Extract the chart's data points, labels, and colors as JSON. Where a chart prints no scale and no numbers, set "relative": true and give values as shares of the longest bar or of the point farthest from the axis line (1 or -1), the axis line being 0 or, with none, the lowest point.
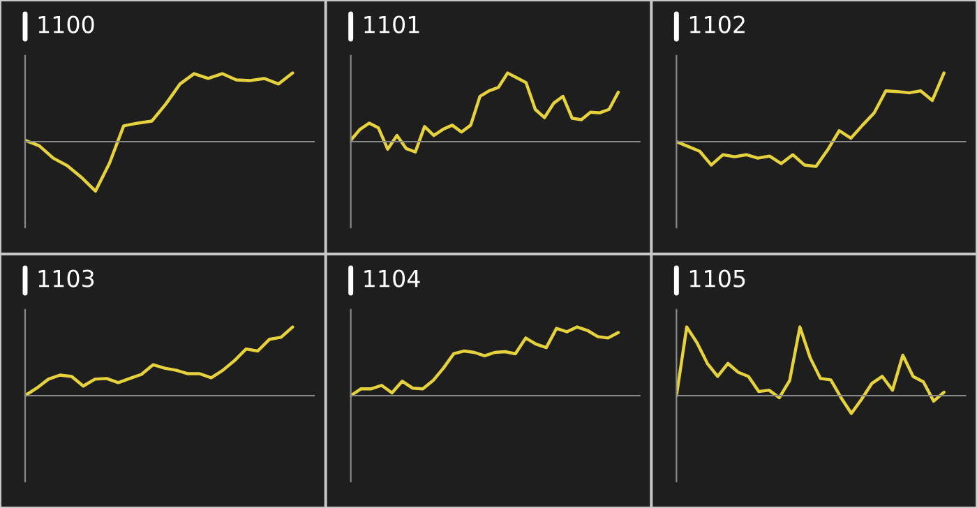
{
  "chart_data": [
    {
      "type": "line",
      "title": "1100",
      "relative": true,
      "categories": [
        null,
        null,
        null,
        null,
        null,
        null,
        null,
        null,
        null,
        null,
        null,
        null,
        null,
        null,
        null,
        null,
        null,
        null,
        null,
        null
      ],
      "series": [
        {
          "color": "#e6d23c",
          "values": [
            0.02,
            -0.06,
            -0.24,
            -0.35,
            -0.52,
            -0.72,
            -0.31,
            0.23,
            0.27,
            0.3,
            0.55,
            0.84,
            0.99,
            0.92,
            0.99,
            0.9,
            0.89,
            0.92,
            0.84,
            1.0
          ]
        }
      ]
    },
    {
      "type": "line",
      "title": "1101",
      "relative": true,
      "categories": [
        null,
        null,
        null,
        null,
        null,
        null,
        null,
        null,
        null,
        null,
        null,
        null,
        null,
        null,
        null,
        null,
        null,
        null,
        null,
        null,
        null,
        null,
        null,
        null,
        null,
        null,
        null,
        null,
        null,
        null
      ],
      "series": [
        {
          "color": "#e6d23c",
          "values": [
            0.02,
            0.18,
            0.27,
            0.2,
            -0.11,
            0.09,
            -0.1,
            -0.15,
            0.22,
            0.09,
            0.18,
            0.24,
            0.14,
            0.24,
            0.66,
            0.74,
            0.79,
            1.0,
            0.93,
            0.86,
            0.47,
            0.35,
            0.56,
            0.66,
            0.34,
            0.32,
            0.43,
            0.42,
            0.47,
            0.72
          ]
        }
      ]
    },
    {
      "type": "line",
      "title": "1102",
      "relative": true,
      "categories": [
        null,
        null,
        null,
        null,
        null,
        null,
        null,
        null,
        null,
        null,
        null,
        null,
        null,
        null,
        null,
        null,
        null,
        null,
        null,
        null,
        null,
        null,
        null,
        null
      ],
      "series": [
        {
          "color": "#e6d23c",
          "values": [
            0,
            -0.07,
            -0.14,
            -0.34,
            -0.19,
            -0.22,
            -0.19,
            -0.24,
            -0.21,
            -0.32,
            -0.19,
            -0.34,
            -0.36,
            -0.12,
            0.16,
            0.05,
            0.24,
            0.42,
            0.74,
            0.73,
            0.71,
            0.74,
            0.6,
            1.0
          ]
        }
      ]
    },
    {
      "type": "line",
      "title": "1103",
      "relative": true,
      "categories": [
        null,
        null,
        null,
        null,
        null,
        null,
        null,
        null,
        null,
        null,
        null,
        null,
        null,
        null,
        null,
        null,
        null,
        null,
        null,
        null,
        null,
        null,
        null,
        null
      ],
      "series": [
        {
          "color": "#e6d23c",
          "values": [
            0,
            0.11,
            0.24,
            0.3,
            0.28,
            0.14,
            0.24,
            0.25,
            0.19,
            0.25,
            0.31,
            0.45,
            0.4,
            0.37,
            0.32,
            0.32,
            0.26,
            0.37,
            0.51,
            0.68,
            0.65,
            0.82,
            0.85,
            1.0
          ]
        }
      ]
    },
    {
      "type": "line",
      "title": "1104",
      "relative": true,
      "categories": [
        null,
        null,
        null,
        null,
        null,
        null,
        null,
        null,
        null,
        null,
        null,
        null,
        null,
        null,
        null,
        null,
        null,
        null,
        null,
        null,
        null,
        null,
        null,
        null,
        null,
        null,
        null
      ],
      "series": [
        {
          "color": "#e6d23c",
          "values": [
            0,
            0.1,
            0.1,
            0.15,
            0.04,
            0.21,
            0.11,
            0.1,
            0.22,
            0.4,
            0.61,
            0.65,
            0.63,
            0.58,
            0.63,
            0.64,
            0.61,
            0.84,
            0.75,
            0.7,
            0.98,
            0.93,
            1.0,
            0.95,
            0.86,
            0.84,
            0.92
          ]
        }
      ]
    },
    {
      "type": "line",
      "title": "1105",
      "relative": true,
      "categories": [
        null,
        null,
        null,
        null,
        null,
        null,
        null,
        null,
        null,
        null,
        null,
        null,
        null,
        null,
        null,
        null,
        null,
        null,
        null,
        null,
        null,
        null,
        null,
        null,
        null,
        null,
        null
      ],
      "series": [
        {
          "color": "#e6d23c",
          "values": [
            0,
            1.0,
            0.77,
            0.47,
            0.28,
            0.47,
            0.34,
            0.28,
            0.06,
            0.08,
            -0.03,
            0.22,
            1.0,
            0.55,
            0.25,
            0.23,
            -0.03,
            -0.26,
            -0.05,
            0.18,
            0.28,
            0.08,
            0.59,
            0.28,
            0.2,
            -0.08,
            0.05
          ]
        }
      ]
    }
  ]
}
